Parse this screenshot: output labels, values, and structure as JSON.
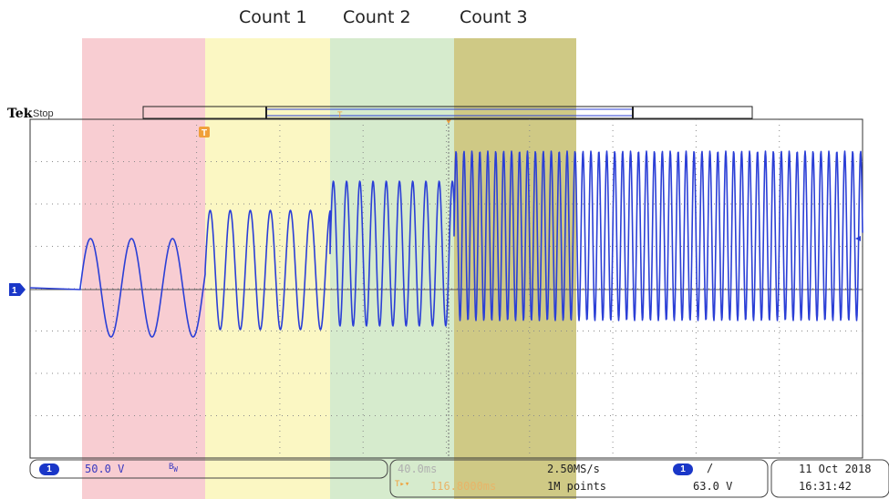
{
  "count_labels": [
    "Count 1",
    "Count 2",
    "Count 3"
  ],
  "header": {
    "brand": "Tek",
    "run_state": "Stop"
  },
  "channel": {
    "marker": "1",
    "volts_per_div": "50.0 V",
    "bandwidth_icon": "BW-limit-icon"
  },
  "timebase": {
    "time_per_div": "40.0ms",
    "trigger_position": "116.8000ms"
  },
  "acquisition": {
    "sample_rate": "2.50MS/s",
    "record_length": "1M points"
  },
  "trigger": {
    "source": "1",
    "slope_symbol": "/",
    "level": "63.0 V"
  },
  "datetime": {
    "date": "11 Oct  2018",
    "time": "16:31:42"
  },
  "colors": {
    "count0_band": "#f8cdd2",
    "count1_band": "#fbf7c3",
    "count2_band": "#d6ebcd",
    "count3_band": "#cfc985",
    "trace": "#2b3fd6",
    "marker": "#1a37c8",
    "trigger_marker": "#f0a03a"
  }
}
